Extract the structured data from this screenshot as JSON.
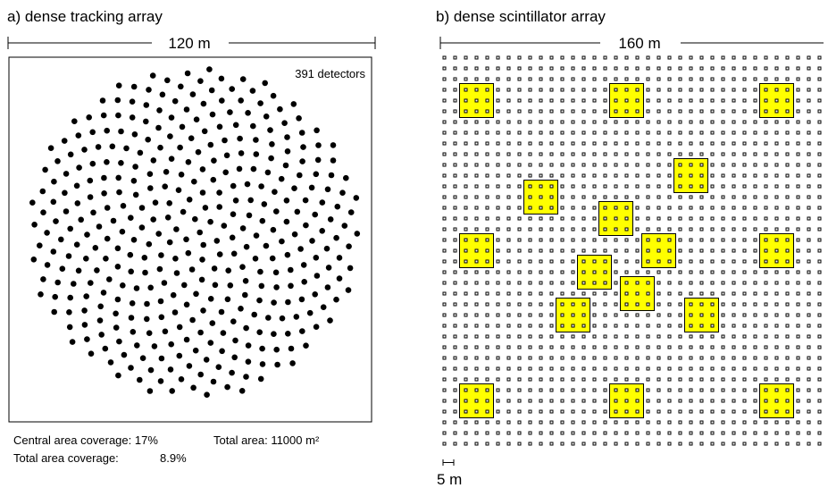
{
  "panel_a": {
    "title": "a) dense tracking array",
    "scale_label": "120 m",
    "count_label": "391 detectors",
    "detector_count": 391,
    "stats": {
      "central_coverage": "Central area coverage: 17%",
      "total_area": "Total area: 11000 m²",
      "total_coverage": "Total area coverage:",
      "total_coverage_value": "8.9%"
    }
  },
  "panel_b": {
    "title": "b) dense scintillator array",
    "scale_label": "160 m",
    "grid_label": "5 m",
    "colors": {
      "highlight": "#ffff00",
      "cell_stroke": "#000000"
    }
  }
}
